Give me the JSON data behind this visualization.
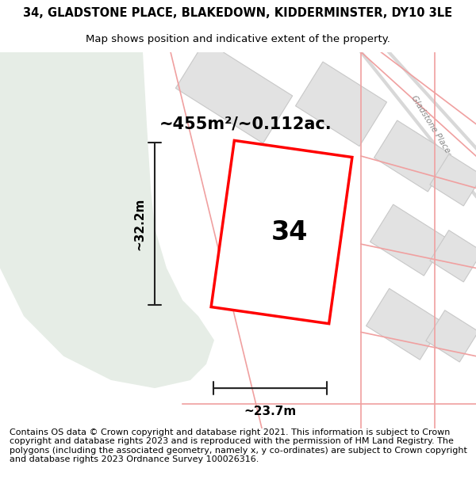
{
  "title": "34, GLADSTONE PLACE, BLAKEDOWN, KIDDERMINSTER, DY10 3LE",
  "subtitle": "Map shows position and indicative extent of the property.",
  "area_text": "~455m²/~0.112ac.",
  "width_label": "~23.7m",
  "height_label": "~32.2m",
  "house_number": "34",
  "footer_text": "Contains OS data © Crown copyright and database right 2021. This information is subject to Crown copyright and database rights 2023 and is reproduced with the permission of HM Land Registry. The polygons (including the associated geometry, namely x, y co-ordinates) are subject to Crown copyright and database rights 2023 Ordnance Survey 100026316.",
  "bg_color": "#f7f7f7",
  "green_color": "#e6ede6",
  "plot_outline_color": "#ff0000",
  "plot_fill_color": "#ffffff",
  "building_fill": "#e2e2e2",
  "building_edge": "#c8c8c8",
  "road_pink": "#f0a0a0",
  "road_gray": "#d8d8d8",
  "ann_color": "#222222",
  "gladstone_text_color": "#888888",
  "title_fontsize": 10.5,
  "subtitle_fontsize": 9.5,
  "footer_fontsize": 8.0,
  "area_fontsize": 15,
  "dim_fontsize": 11,
  "number_fontsize": 24
}
